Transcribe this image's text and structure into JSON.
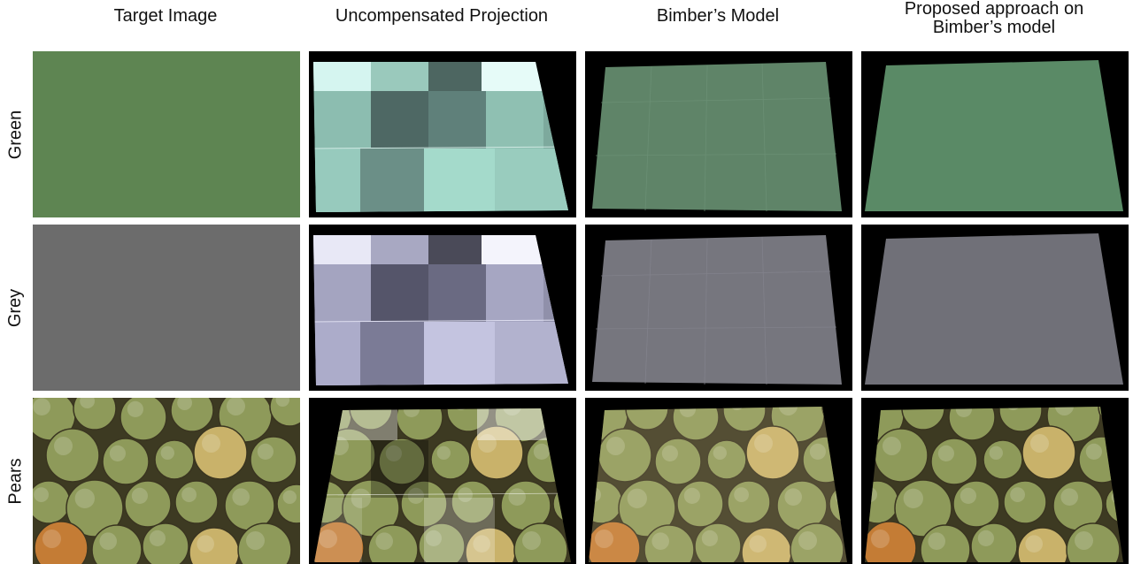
{
  "column_titles": [
    "Target Image",
    "Uncompensated Projection",
    "Bimber’s Model",
    "Proposed approach on Bimber’s model"
  ],
  "column_title_lines": {
    "proposed_line1": "Proposed approach on",
    "proposed_line2": "Bimber’s model"
  },
  "row_labels": [
    "Green",
    "Grey",
    "Pears"
  ],
  "colors": {
    "green_target": "#5e8552",
    "grey_target": "#6c6c6c",
    "green_bimber": "#5f8468",
    "grey_bimber": "#76767e",
    "green_proposed": "#5a8a66",
    "grey_proposed": "#707078",
    "projection_light_green": "#a8dccd",
    "projection_light_grey": "#b8b8d0",
    "background": "#000000",
    "pear_yellow": "#c9b26a",
    "pear_green": "#8e9a5a",
    "pear_orange": "#c47c35"
  },
  "cells": [
    [
      "green-target",
      "green-uncompensated",
      "green-bimber",
      "green-proposed"
    ],
    [
      "grey-target",
      "grey-uncompensated",
      "grey-bimber",
      "grey-proposed"
    ],
    [
      "pears-target",
      "pears-uncompensated",
      "pears-bimber",
      "pears-proposed"
    ]
  ]
}
